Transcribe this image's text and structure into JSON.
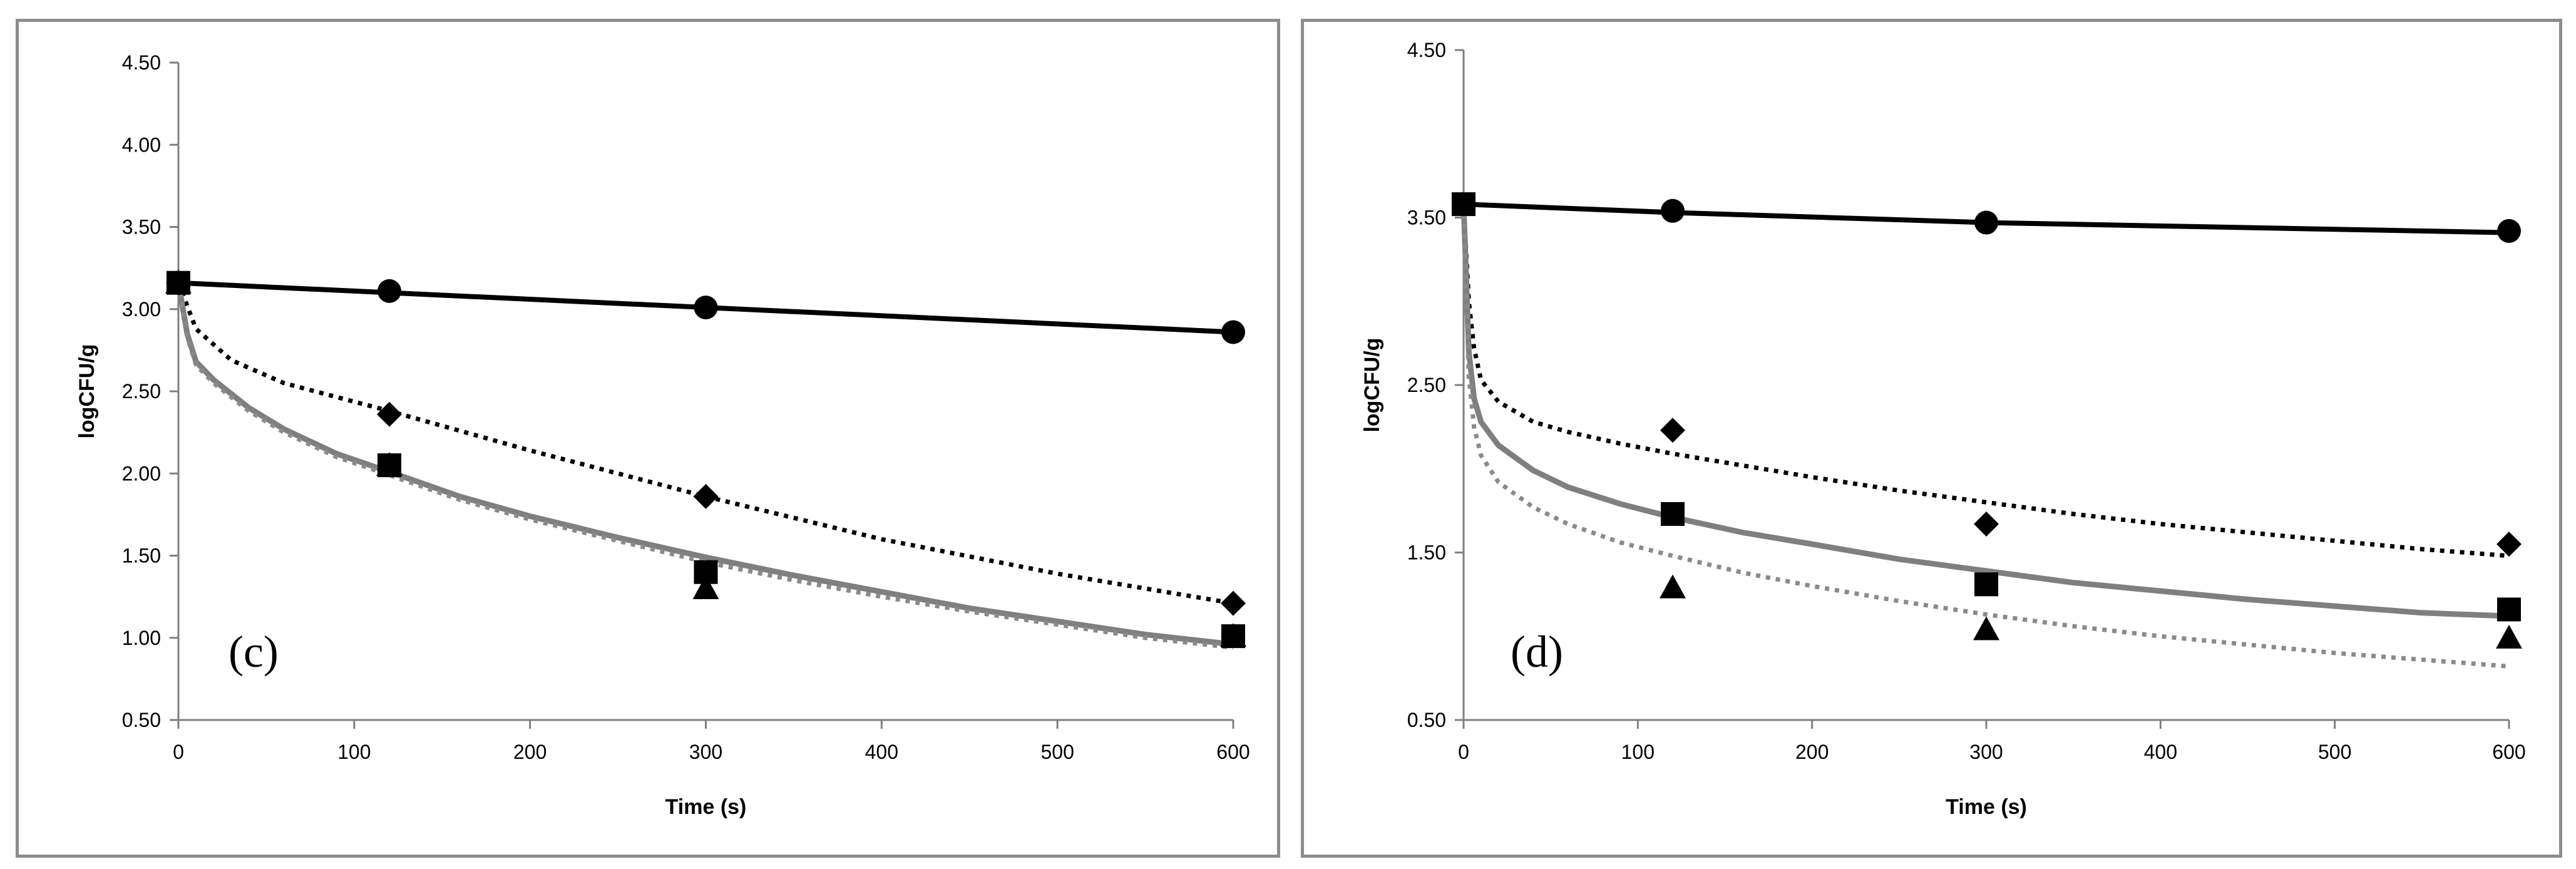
{
  "chart_data": [
    {
      "type": "scatter",
      "panel_label": "(c)",
      "xlabel": "Time (s)",
      "ylabel": "logCFU/g",
      "xlim": [
        0,
        600
      ],
      "ylim": [
        0.5,
        4.5
      ],
      "xticks": [
        0,
        100,
        200,
        300,
        400,
        500,
        600
      ],
      "yticks": [
        0.5,
        1.0,
        1.5,
        2.0,
        2.5,
        3.0,
        3.5,
        4.0,
        4.5
      ],
      "ytick_labels": [
        "0.50",
        "1.00",
        "1.50",
        "2.00",
        "2.50",
        "3.00",
        "3.50",
        "4.00",
        "4.50"
      ],
      "markers": [
        {
          "name": "circle",
          "shape": "circle",
          "x": [
            0,
            120,
            300,
            600
          ],
          "y": [
            3.16,
            3.11,
            3.01,
            2.86
          ]
        },
        {
          "name": "diamond",
          "shape": "diamond",
          "x": [
            0,
            120,
            300,
            600
          ],
          "y": [
            3.16,
            2.36,
            1.86,
            1.21
          ]
        },
        {
          "name": "square",
          "shape": "square",
          "x": [
            0,
            120,
            300,
            600
          ],
          "y": [
            3.16,
            2.05,
            1.4,
            1.01
          ]
        },
        {
          "name": "triangle",
          "shape": "triangle",
          "x": [
            0,
            120,
            300,
            600
          ],
          "y": [
            3.16,
            2.05,
            1.3,
            1.01
          ]
        }
      ],
      "curves": [
        {
          "name": "circle-fit",
          "style": "solid-black",
          "x": [
            0,
            120,
            300,
            600
          ],
          "y": [
            3.16,
            3.1,
            3.01,
            2.86
          ]
        },
        {
          "name": "diamond-fit",
          "style": "dotted-black",
          "x": [
            0,
            10,
            30,
            60,
            120,
            200,
            300,
            400,
            500,
            600
          ],
          "y": [
            3.16,
            2.88,
            2.69,
            2.55,
            2.38,
            2.14,
            1.86,
            1.6,
            1.39,
            1.21
          ]
        },
        {
          "name": "square-fit",
          "style": "solid-gray",
          "x": [
            0,
            5,
            10,
            20,
            40,
            60,
            90,
            120,
            160,
            200,
            250,
            300,
            350,
            400,
            450,
            500,
            550,
            600
          ],
          "y": [
            3.16,
            2.85,
            2.68,
            2.57,
            2.4,
            2.27,
            2.12,
            2.01,
            1.86,
            1.74,
            1.61,
            1.49,
            1.38,
            1.28,
            1.18,
            1.1,
            1.02,
            0.96
          ]
        },
        {
          "name": "triangle-fit",
          "style": "dotted-gray",
          "x": [
            0,
            5,
            10,
            20,
            40,
            60,
            90,
            120,
            160,
            200,
            250,
            300,
            350,
            400,
            450,
            500,
            550,
            600
          ],
          "y": [
            3.16,
            2.83,
            2.66,
            2.55,
            2.38,
            2.25,
            2.1,
            1.99,
            1.84,
            1.72,
            1.59,
            1.46,
            1.35,
            1.25,
            1.16,
            1.08,
            1.0,
            0.94
          ]
        }
      ]
    },
    {
      "type": "scatter",
      "panel_label": "(d)",
      "xlabel": "Time (s)",
      "ylabel": "logCFU/g",
      "xlim": [
        0,
        600
      ],
      "ylim": [
        0.5,
        4.5
      ],
      "xticks": [
        0,
        100,
        200,
        300,
        400,
        500,
        600
      ],
      "yticks": [
        0.5,
        1.5,
        2.5,
        3.5,
        4.5
      ],
      "ytick_labels": [
        "0.50",
        "1.50",
        "2.50",
        "3.50",
        "4.50"
      ],
      "markers": [
        {
          "name": "circle",
          "shape": "circle",
          "x": [
            120,
            300,
            600
          ],
          "y": [
            3.54,
            3.47,
            3.42
          ]
        },
        {
          "name": "diamond",
          "shape": "diamond",
          "x": [
            120,
            300,
            600
          ],
          "y": [
            2.23,
            1.67,
            1.55
          ]
        },
        {
          "name": "square",
          "shape": "square",
          "x": [
            0,
            120,
            300,
            600
          ],
          "y": [
            3.58,
            1.73,
            1.31,
            1.16
          ]
        },
        {
          "name": "triangle",
          "shape": "triangle",
          "x": [
            120,
            300,
            600
          ],
          "y": [
            1.29,
            1.04,
            0.99
          ]
        }
      ],
      "curves": [
        {
          "name": "circle-fit",
          "style": "solid-black",
          "x": [
            0,
            120,
            300,
            600
          ],
          "y": [
            3.58,
            3.53,
            3.47,
            3.41
          ]
        },
        {
          "name": "diamond-fit",
          "style": "dotted-black",
          "x": [
            0,
            3,
            6,
            10,
            20,
            40,
            60,
            90,
            120,
            160,
            200,
            250,
            300,
            350,
            400,
            450,
            500,
            550,
            600
          ],
          "y": [
            3.58,
            3.0,
            2.72,
            2.53,
            2.4,
            2.28,
            2.22,
            2.15,
            2.09,
            2.02,
            1.95,
            1.87,
            1.8,
            1.73,
            1.67,
            1.62,
            1.57,
            1.52,
            1.48
          ]
        },
        {
          "name": "square-fit",
          "style": "solid-gray",
          "x": [
            0,
            3,
            6,
            10,
            20,
            40,
            60,
            90,
            120,
            160,
            200,
            250,
            300,
            350,
            400,
            450,
            500,
            550,
            600
          ],
          "y": [
            3.58,
            2.7,
            2.42,
            2.28,
            2.14,
            1.99,
            1.89,
            1.79,
            1.71,
            1.62,
            1.55,
            1.46,
            1.39,
            1.32,
            1.27,
            1.22,
            1.18,
            1.14,
            1.12
          ]
        },
        {
          "name": "triangle-fit",
          "style": "dotted-gray",
          "x": [
            0,
            3,
            6,
            10,
            20,
            40,
            60,
            90,
            120,
            160,
            200,
            250,
            300,
            350,
            400,
            450,
            500,
            550,
            600
          ],
          "y": [
            3.58,
            2.55,
            2.25,
            2.08,
            1.92,
            1.77,
            1.67,
            1.56,
            1.48,
            1.38,
            1.3,
            1.21,
            1.13,
            1.06,
            1.0,
            0.95,
            0.9,
            0.86,
            0.82
          ]
        }
      ]
    }
  ]
}
